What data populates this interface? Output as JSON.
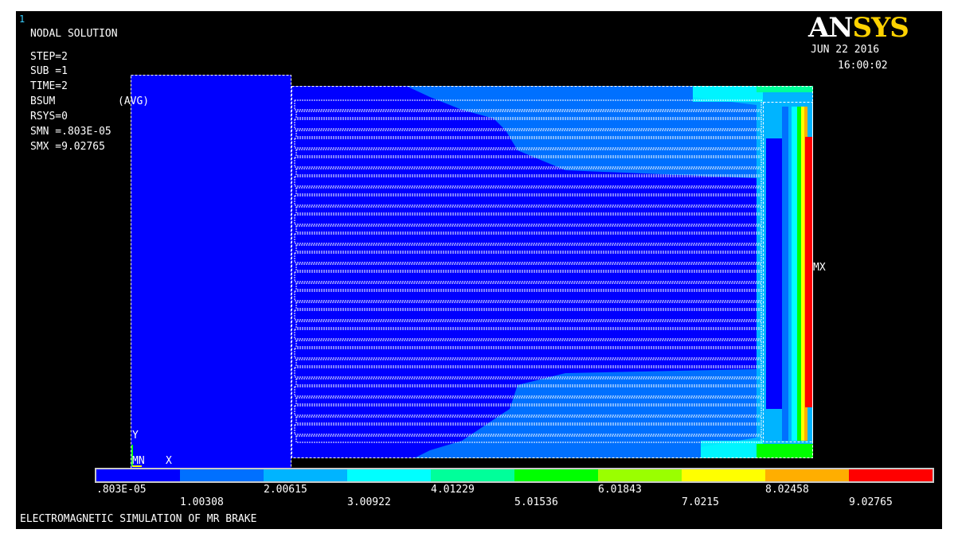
{
  "window_number": "1",
  "logo": {
    "part1": "AN",
    "part2": "SYS"
  },
  "date": "JUN 22 2016",
  "time": "16:00:02",
  "info": {
    "title": "NODAL SOLUTION",
    "step": "STEP=2",
    "sub": "SUB =1",
    "time": "TIME=2",
    "item": "BSUM",
    "avg": "(AVG)",
    "rsys": "RSYS=0",
    "smn": "SMN =.803E-05",
    "smx": "SMX =9.02765"
  },
  "markers": {
    "mx": "MX",
    "mn": "MN",
    "y_axis": "Y",
    "x_axis": "X"
  },
  "legend": {
    "colors": [
      "#0000ff",
      "#0070ff",
      "#00b4ff",
      "#00ffff",
      "#00ff9a",
      "#00ff00",
      "#9aff00",
      "#ffff00",
      "#ffae00",
      "#ff0000"
    ],
    "labels_top": [
      ".803E-05",
      "2.00615",
      "4.01229",
      "6.01843",
      "8.02458"
    ],
    "labels_bottom": [
      "1.00308",
      "3.00922",
      "5.01536",
      "7.0215",
      "9.02765"
    ]
  },
  "caption": "ELECTROMAGNETIC SIMULATION OF MR BRAKE"
}
